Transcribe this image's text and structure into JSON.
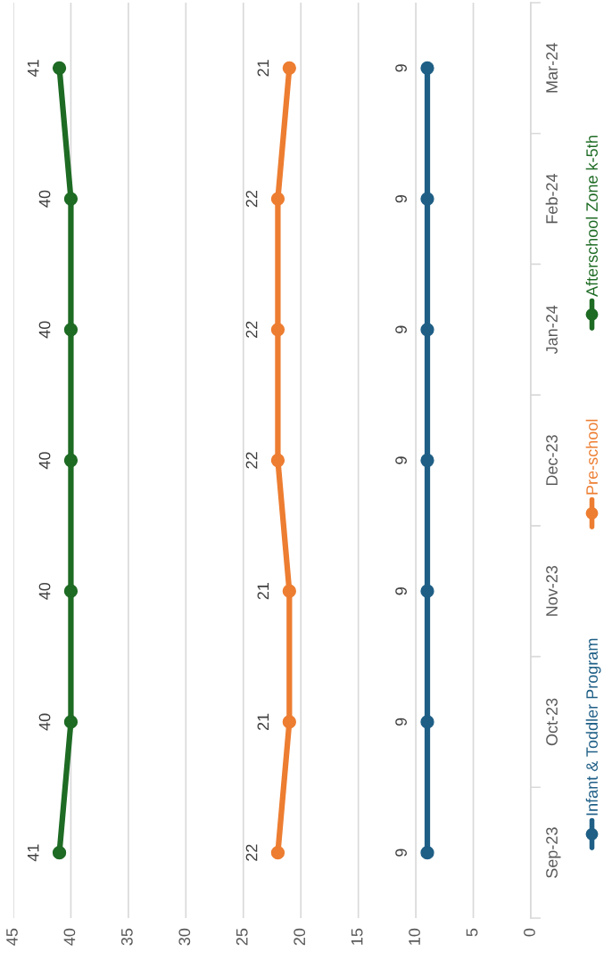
{
  "chart_data": {
    "type": "line",
    "orientation": "horizontal",
    "categories": [
      "Mar-24",
      "Feb-24",
      "Jan-24",
      "Dec-23",
      "Nov-23",
      "Oct-23",
      "Sep-23"
    ],
    "series": [
      {
        "name": "Infant & Toddler Program",
        "color": "#1f5f86",
        "values": [
          9,
          9,
          9,
          9,
          9,
          9,
          9
        ]
      },
      {
        "name": "Pre-school",
        "color": "#ed7d31",
        "values": [
          21,
          22,
          22,
          22,
          21,
          21,
          22
        ]
      },
      {
        "name": "Afterschool Zone k-5th",
        "color": "#1e6b24",
        "values": [
          41,
          40,
          40,
          40,
          40,
          40,
          41
        ]
      }
    ],
    "xlim": [
      45,
      0
    ],
    "xticks": [
      45,
      40,
      35,
      30,
      25,
      20,
      15,
      10,
      5,
      0
    ],
    "grid": "x",
    "legend": "right",
    "marker": "circle",
    "line_style": "solid",
    "data_labels": true
  }
}
